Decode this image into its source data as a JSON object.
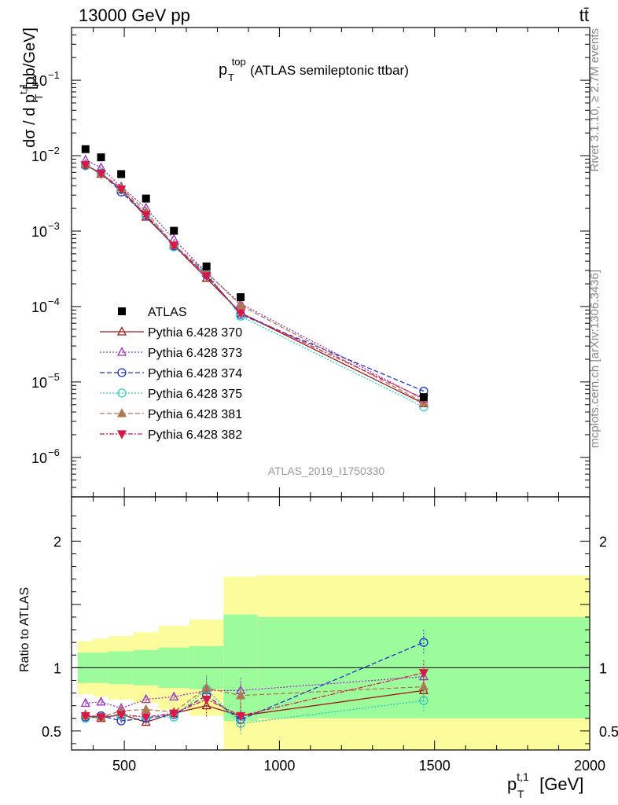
{
  "header": {
    "energy_label": "13000 GeV pp",
    "process_label": "tt̄",
    "plot_title_main": "p",
    "plot_title_sup": "top",
    "plot_title_sub": "T",
    "plot_title_rest": " (ATLAS semileptonic ttbar)",
    "analysis_id": "ATLAS_2019_I1750330"
  },
  "side_labels": {
    "rivet": "Rivet 3.1.10, ≥ 2.7M events",
    "mcplots": "mcplots.cern.ch [arXiv:1306.3436]"
  },
  "axes": {
    "y_main_label": "dσ / d p",
    "y_main_sup": "t,1",
    "y_main_sub": "T",
    "y_main_unit": " [pb/GeV]",
    "y_ratio_label": "Ratio to ATLAS",
    "x_label": "p",
    "x_sup": "t,1",
    "x_sub": "T",
    "x_unit": " [GeV]"
  },
  "chart_data": {
    "type": "scatter",
    "x_range": [
      330,
      2000
    ],
    "main": {
      "yscale": "log",
      "ylim": [
        3e-07,
        0.5
      ],
      "y_ticks": [
        {
          "base": "10",
          "exp": "−1",
          "value": 0.1
        },
        {
          "base": "10",
          "exp": "−2",
          "value": 0.01
        },
        {
          "base": "10",
          "exp": "−3",
          "value": 0.001
        },
        {
          "base": "10",
          "exp": "−4",
          "value": 0.0001
        },
        {
          "base": "10",
          "exp": "−5",
          "value": 1e-05
        },
        {
          "base": "10",
          "exp": "−6",
          "value": 1e-06
        }
      ]
    },
    "ratio": {
      "ylim": [
        0.35,
        2.35
      ],
      "y_ticks": [
        "0.5",
        "1",
        "2"
      ]
    },
    "x_ticks": [
      "500",
      "1000",
      "1500",
      "2000"
    ],
    "bins": [
      [
        350,
        400
      ],
      [
        400,
        450
      ],
      [
        450,
        530
      ],
      [
        530,
        610
      ],
      [
        610,
        710
      ],
      [
        710,
        820
      ],
      [
        820,
        930
      ],
      [
        930,
        2000
      ]
    ],
    "x": [
      375,
      425,
      490,
      570,
      660,
      765,
      875,
      1465
    ],
    "data": {
      "name": "ATLAS",
      "values": [
        0.0122,
        0.0095,
        0.0057,
        0.0027,
        0.00101,
        0.00034,
        0.000133,
        6.3e-06
      ],
      "band_inner": [
        0.12,
        0.12,
        0.13,
        0.14,
        0.16,
        0.17,
        0.42,
        0.4
      ],
      "band_outer": [
        0.21,
        0.23,
        0.25,
        0.28,
        0.33,
        0.38,
        0.72,
        0.73
      ]
    },
    "series": [
      {
        "name": "Pythia 6.428 370",
        "color": "#a01818",
        "marker": "triangle-up-open",
        "dash": "",
        "ratio": [
          0.62,
          0.6,
          0.63,
          0.57,
          0.64,
          0.7,
          0.62,
          0.82
        ]
      },
      {
        "name": "Pythia 6.428 373",
        "color": "#9a30c8",
        "marker": "triangle-up-open",
        "dash": "2,2",
        "ratio": [
          0.72,
          0.73,
          0.68,
          0.75,
          0.77,
          0.82,
          0.82,
          0.93
        ]
      },
      {
        "name": "Pythia 6.428 374",
        "color": "#2030d0",
        "marker": "circle-open",
        "dash": "6,3",
        "ratio": [
          0.61,
          0.62,
          0.58,
          0.6,
          0.63,
          0.78,
          0.59,
          1.2
        ]
      },
      {
        "name": "Pythia 6.428 375",
        "color": "#20d0c0",
        "marker": "circle-open",
        "dash": "2,2",
        "ratio": [
          0.6,
          0.61,
          0.62,
          0.61,
          0.61,
          0.83,
          0.56,
          0.74
        ]
      },
      {
        "name": "Pythia 6.428 381",
        "color": "#b07850",
        "marker": "triangle-up-filled",
        "dash": "6,3",
        "ratio": [
          0.63,
          0.61,
          0.66,
          0.67,
          0.65,
          0.84,
          0.78,
          0.85
        ]
      },
      {
        "name": "Pythia 6.428 382",
        "color": "#d81848",
        "marker": "triangle-down-filled",
        "dash": "6,2,2,2",
        "ratio": [
          0.62,
          0.61,
          0.63,
          0.61,
          0.64,
          0.75,
          0.62,
          0.96
        ]
      }
    ],
    "colors": {
      "band_inner": "#9cfc9c",
      "band_outer": "#fcfc9c",
      "data_marker": "#000000",
      "analysis_label": "#999999",
      "side_labels": "#888888"
    }
  }
}
